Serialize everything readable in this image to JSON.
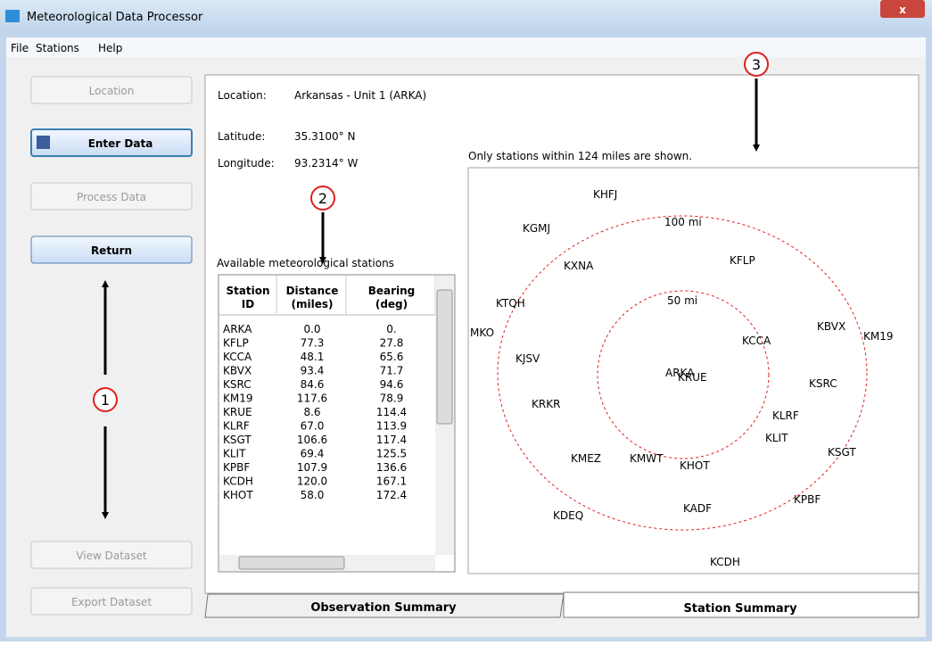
{
  "window": {
    "title": "Meteorological Data Processor"
  },
  "menu": [
    "File",
    "Stations",
    "Help"
  ],
  "buttons": [
    "Location",
    "Enter Data",
    "Process Data",
    "Return",
    "View Dataset",
    "Export Dataset"
  ],
  "callouts": [
    "1",
    "2",
    "3"
  ],
  "info": {
    "location_label": "Location:",
    "location": "Arkansas - Unit 1 (ARKA)",
    "latitude_label": "Latitude:",
    "latitude": "35.3100° N",
    "longitude_label": "Longitude:",
    "longitude": "93.2314° W"
  },
  "table": {
    "caption": "Available meteorological stations",
    "headers": [
      [
        "Station",
        "ID"
      ],
      [
        "Distance",
        "(miles)"
      ],
      [
        "Bearing",
        "(deg)"
      ]
    ],
    "rows": [
      [
        "ARKA",
        "0.0",
        "0."
      ],
      [
        "KFLP",
        "77.3",
        "27.8"
      ],
      [
        "KCCA",
        "48.1",
        "65.6"
      ],
      [
        "KBVX",
        "93.4",
        "71.7"
      ],
      [
        "KSRC",
        "84.6",
        "94.6"
      ],
      [
        "KM19",
        "117.6",
        "78.9"
      ],
      [
        "KRUE",
        "8.6",
        "114.4"
      ],
      [
        "KLRF",
        "67.0",
        "113.9"
      ],
      [
        "KSGT",
        "106.6",
        "117.4"
      ],
      [
        "KLIT",
        "69.4",
        "125.5"
      ],
      [
        "KPBF",
        "107.9",
        "136.6"
      ],
      [
        "KCDH",
        "120.0",
        "167.1"
      ],
      [
        "KHOT",
        "58.0",
        "172.4"
      ]
    ]
  },
  "map": {
    "note": "Only stations within 124 miles are shown.",
    "rings": [
      "100 mi",
      "50 mi"
    ],
    "stations": [
      "KHFJ",
      "KGMJ",
      "KXNA",
      "KFLP",
      "KTQH",
      "MKO",
      "KJSV",
      "KCCA",
      "KBVX",
      "KM19",
      "ARKA",
      "KRUE",
      "KSRC",
      "KRKR",
      "KLRF",
      "KLIT",
      "KSGT",
      "KMEZ",
      "KMWT",
      "KHOT",
      "KPBF",
      "KADF",
      "KDEQ",
      "KCDH"
    ]
  },
  "tabs": [
    "Observation Summary",
    "Station Summary"
  ]
}
